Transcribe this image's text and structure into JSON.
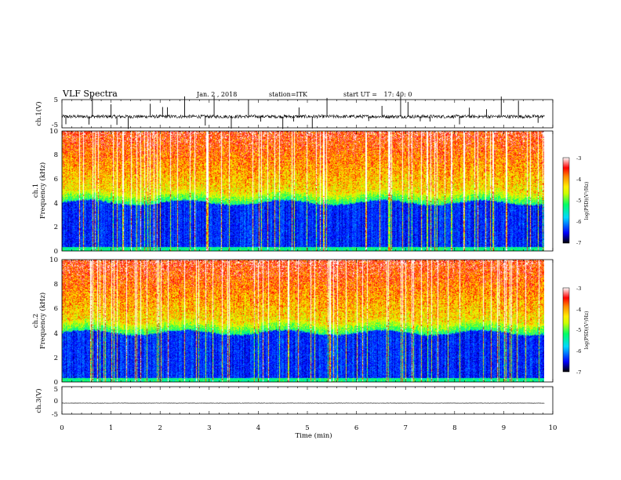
{
  "header": {
    "title": "VLF Spectra",
    "date": "Jan. 2 , 2018",
    "station": "station=ITK",
    "start_label": "start UT = ",
    "start_time": "17: 40: 0"
  },
  "chart_data": [
    {
      "type": "line",
      "id": "ch1-waveform",
      "ylabel": "ch.1(V)",
      "ylim": [
        -5,
        5
      ],
      "yticks": [
        "5",
        "-5"
      ],
      "xlim": [
        0,
        10
      ],
      "data_xrange": [
        0,
        9.83
      ],
      "baseline": -1.0,
      "noise_amplitude": 0.6,
      "spike_times": [
        0.08,
        0.55,
        0.62,
        1.0,
        1.12,
        1.35,
        1.8,
        2.05,
        2.15,
        2.5,
        2.92,
        3.1,
        3.45,
        3.8,
        4.05,
        4.5,
        4.72,
        4.83,
        5.1,
        5.4,
        6.25,
        6.52,
        6.9,
        7.05,
        7.3,
        7.5,
        8.1,
        8.3,
        8.65,
        8.95,
        9.3,
        9.7
      ],
      "color": "#000000"
    },
    {
      "type": "heatmap",
      "id": "ch1-spectrogram",
      "ylabel": "ch.1",
      "ylabel2": "Frequency (kHz)",
      "ylim": [
        0,
        10
      ],
      "yticks": [
        "0",
        "2",
        "4",
        "6",
        "8",
        "10"
      ],
      "xlim": [
        0,
        10
      ],
      "data_xrange": [
        0,
        9.83
      ],
      "colorbar": {
        "label": "log(PSD)(V²/Hz)",
        "range": [
          -7,
          -3
        ],
        "ticks": [
          "-3",
          "-4",
          "-5",
          "-6",
          "-7"
        ],
        "colors": [
          "#000000",
          "#0000ff",
          "#00e0ff",
          "#00ff66",
          "#ccff00",
          "#ffee00",
          "#ff8800",
          "#ff0000",
          "#ffffff"
        ]
      }
    },
    {
      "type": "heatmap",
      "id": "ch2-spectrogram",
      "ylabel": "ch.2",
      "ylabel2": "Frequency (kHz)",
      "ylim": [
        0,
        10
      ],
      "yticks": [
        "0",
        "2",
        "4",
        "6",
        "8",
        "10"
      ],
      "xlim": [
        0,
        10
      ],
      "data_xrange": [
        0,
        9.83
      ],
      "colorbar": {
        "label": "log(PSD)(V²/Hz)",
        "range": [
          -7,
          -3
        ],
        "ticks": [
          "-3",
          "-4",
          "-5",
          "-6",
          "-7"
        ],
        "colors": [
          "#000000",
          "#0000ff",
          "#00e0ff",
          "#00ff66",
          "#ccff00",
          "#ffee00",
          "#ff8800",
          "#ff0000",
          "#ffffff"
        ]
      }
    },
    {
      "type": "line",
      "id": "ch3-waveform",
      "ylabel": "ch.3(V)",
      "ylim": [
        -5,
        5
      ],
      "yticks": [
        "5",
        "0",
        "-5"
      ],
      "xlim": [
        0,
        10
      ],
      "data_xrange": [
        0,
        9.83
      ],
      "baseline": -1.0,
      "noise_amplitude": 0.05,
      "color": "#000000"
    }
  ],
  "x_axis": {
    "label": "Time (min)",
    "ticks": [
      "0",
      "1",
      "2",
      "3",
      "4",
      "5",
      "6",
      "7",
      "8",
      "9",
      "10"
    ]
  }
}
